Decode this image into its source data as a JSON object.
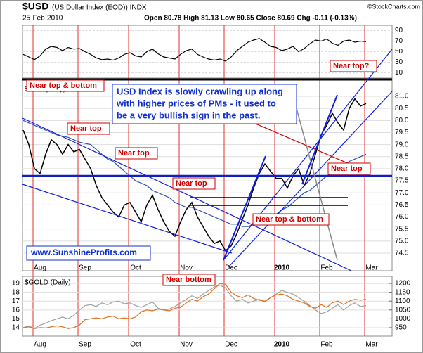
{
  "header": {
    "symbol": "$USD",
    "name": "(US Dollar Index (EOD)) INDX",
    "date": "25-Feb-2010",
    "quote": "Open 80.78 High 81.13 Low 80.65 Close 80.69 Chg -0.11 (-0.13%)",
    "credit": "©StockCharts.com"
  },
  "chart_data": [
    {
      "type": "line",
      "ylim": [
        0,
        100
      ],
      "yticks": [
        10,
        30,
        50,
        70,
        90
      ],
      "series": [
        {
          "color": "#000000",
          "values": [
            45,
            40,
            35,
            42,
            55,
            60,
            58,
            52,
            58,
            55,
            56,
            50,
            45,
            38,
            35,
            36,
            34,
            38,
            45,
            48,
            42,
            40,
            50,
            55,
            46,
            40,
            38,
            36,
            45,
            52,
            55,
            45,
            40,
            36,
            34,
            36,
            32,
            40,
            52,
            60,
            68,
            72,
            75,
            68,
            60,
            58,
            52,
            55,
            60,
            50,
            56,
            65,
            72,
            70,
            74,
            66,
            62,
            70,
            72,
            68,
            70,
            69,
            null,
            null
          ]
        }
      ]
    },
    {
      "type": "line",
      "title": "$USD (Daily)",
      "categories": [
        null,
        null,
        null,
        "Aug",
        null,
        null,
        null,
        null,
        null,
        null,
        null,
        "Sep",
        null,
        null,
        null,
        null,
        null,
        null,
        null,
        null,
        "Oct",
        null,
        null,
        null,
        null,
        null,
        null,
        null,
        null,
        "Nov",
        null,
        null,
        null,
        null,
        null,
        null,
        null,
        "Dec",
        null,
        null,
        null,
        null,
        null,
        null,
        null,
        null,
        "2010",
        null,
        null,
        null,
        null,
        null,
        null,
        null,
        "Feb",
        null,
        null,
        null,
        null,
        null,
        null,
        null,
        "Mar",
        null
      ],
      "ylim": [
        73.77,
        81.73
      ],
      "yticks": [
        {
          "value": 74.5,
          "label": "74.5"
        },
        {
          "value": 75,
          "label": "75.0"
        },
        {
          "value": 75.5,
          "label": "75.5"
        },
        {
          "value": 76,
          "label": "76.0"
        },
        {
          "value": 76.5,
          "label": "76.5"
        },
        {
          "value": 77,
          "label": "77.0"
        },
        {
          "value": 77.5,
          "label": "77.5"
        },
        {
          "value": 78,
          "label": "78.0"
        },
        {
          "value": 78.5,
          "label": "78.5"
        },
        {
          "value": 79,
          "label": "79.0"
        },
        {
          "value": 79.5,
          "label": "79.5"
        },
        {
          "value": 80,
          "label": "80.0"
        },
        {
          "value": 80.5,
          "label": "80.5"
        },
        {
          "value": 81,
          "label": "81.0"
        }
      ],
      "grid": true,
      "series": [
        {
          "color": "#000000",
          "values": [
            79.6,
            79.0,
            78.0,
            77.8,
            78.6,
            79.2,
            79.0,
            78.6,
            79.0,
            78.7,
            78.8,
            78.4,
            78.0,
            77.3,
            76.8,
            76.5,
            76.2,
            76.0,
            76.5,
            76.6,
            76.2,
            75.8,
            76.5,
            76.9,
            76.3,
            75.8,
            75.4,
            75.2,
            75.8,
            76.3,
            76.6,
            76.0,
            75.6,
            75.2,
            74.9,
            75.0,
            74.6,
            74.8,
            75.3,
            75.9,
            76.5,
            77.2,
            77.8,
            78.2,
            77.9,
            77.6,
            77.6,
            77.2,
            77.7,
            78.0,
            77.3,
            77.8,
            78.6,
            79.4,
            79.8,
            80.3,
            79.9,
            79.6,
            80.5,
            80.9,
            80.6,
            80.7,
            null,
            null
          ]
        },
        {
          "color": "#3050c0",
          "values": [
            80.0,
            79.9,
            79.8,
            79.7,
            79.6,
            79.5,
            79.4,
            79.35,
            79.3,
            79.2,
            79.1,
            79.05,
            79.0,
            78.8,
            78.6,
            78.4,
            78.3,
            78.1,
            77.9,
            77.7,
            77.5,
            77.4,
            77.3,
            77.1,
            77.0,
            76.9,
            76.8,
            76.6,
            76.5,
            76.4,
            76.4,
            76.3,
            76.2,
            76.1,
            76.0,
            75.9,
            75.8,
            75.7,
            75.7,
            75.6,
            75.6,
            75.7,
            75.8,
            75.9,
            76.0,
            76.1,
            76.3,
            76.4,
            76.6,
            76.8,
            77.0,
            77.1,
            77.3,
            77.5,
            77.7,
            77.8,
            78.0,
            78.1,
            78.3,
            78.4,
            78.5,
            78.6,
            null,
            null
          ]
        },
        {
          "color": "#d00000",
          "values": [
            null,
            null,
            null,
            null,
            null,
            null,
            null,
            null,
            null,
            null,
            null,
            null,
            null,
            null,
            null,
            null,
            null,
            null,
            null,
            null,
            null,
            null,
            null,
            null,
            null,
            null,
            null,
            null,
            null,
            null,
            null,
            null,
            null,
            null,
            null,
            null,
            null,
            null,
            80.2,
            80.1,
            80.0,
            79.9,
            79.8,
            79.7,
            79.6,
            79.5,
            79.4,
            79.3,
            79.2,
            79.1,
            79.0,
            78.9,
            78.8,
            78.7,
            78.6,
            78.5,
            78.4,
            78.3,
            78.2,
            78.15,
            78.1,
            78.0,
            null,
            null
          ]
        }
      ],
      "annotations": [
        "Near top & bottom",
        "Near top",
        "Near top",
        "Near top",
        "Near top?",
        "Near bottom",
        "Near top & bottom",
        "Near top",
        "USD Index is slowly crawling up along",
        "with higher prices of PMs - it used to",
        "be a very bullish sign in the past.",
        "www.SunshineProfits.com"
      ]
    },
    {
      "type": "line",
      "title": "$GOLD (Daily)",
      "categories": [
        null,
        null,
        null,
        "Aug",
        null,
        null,
        null,
        null,
        null,
        null,
        null,
        "Sep",
        null,
        null,
        null,
        null,
        null,
        null,
        null,
        null,
        "Oct",
        null,
        null,
        null,
        null,
        null,
        null,
        null,
        null,
        "Nov",
        null,
        null,
        null,
        null,
        null,
        null,
        null,
        "Dec",
        null,
        null,
        null,
        null,
        null,
        null,
        null,
        null,
        "2010",
        null,
        null,
        null,
        null,
        null,
        null,
        null,
        "Feb",
        null,
        null,
        null,
        null,
        null,
        null,
        null,
        "Mar",
        null
      ],
      "ylim": [
        13.05,
        19.8
      ],
      "yticks": [
        14,
        15,
        16,
        17,
        18,
        19
      ],
      "y2lim": [
        902,
        1240
      ],
      "y2ticks": [
        950,
        1000,
        1050,
        1100,
        1150,
        1200
      ],
      "series": [
        {
          "color": "#a0a0a0",
          "axis": "y",
          "values": [
            14.0,
            14.2,
            13.9,
            14.3,
            14.5,
            14.8,
            15.0,
            15.2,
            15.0,
            15.4,
            16.0,
            16.5,
            16.6,
            16.4,
            16.8,
            16.6,
            16.9,
            17.0,
            16.7,
            16.8,
            16.5,
            16.3,
            16.6,
            16.9,
            16.2,
            16.0,
            16.1,
            16.4,
            16.8,
            17.2,
            17.6,
            17.3,
            17.8,
            18.2,
            18.6,
            18.8,
            18.5,
            17.6,
            17.0,
            17.2,
            16.8,
            17.0,
            17.2,
            16.9,
            17.4,
            17.8,
            18.2,
            18.0,
            17.8,
            17.4,
            17.0,
            16.5,
            16.0,
            15.6,
            15.8,
            16.2,
            16.6,
            16.0,
            16.5,
            16.8,
            16.4,
            16.5,
            null,
            null
          ]
        },
        {
          "color": "#e07020",
          "axis": "y2",
          "values": [
            950,
            955,
            945,
            950,
            948,
            955,
            960,
            955,
            945,
            950,
            965,
            995,
            1000,
            1005,
            1000,
            1010,
            1015,
            1000,
            1005,
            1000,
            1010,
            1040,
            1050,
            1045,
            1055,
            1050,
            1045,
            1060,
            1065,
            1090,
            1110,
            1100,
            1125,
            1140,
            1170,
            1200,
            1195,
            1150,
            1130,
            1120,
            1135,
            1115,
            1105,
            1100,
            1120,
            1135,
            1140,
            1130,
            1110,
            1100,
            1090,
            1070,
            1060,
            1080,
            1065,
            1090,
            1100,
            1080,
            1100,
            1110,
            1105,
            1110,
            null,
            null
          ]
        }
      ]
    }
  ]
}
